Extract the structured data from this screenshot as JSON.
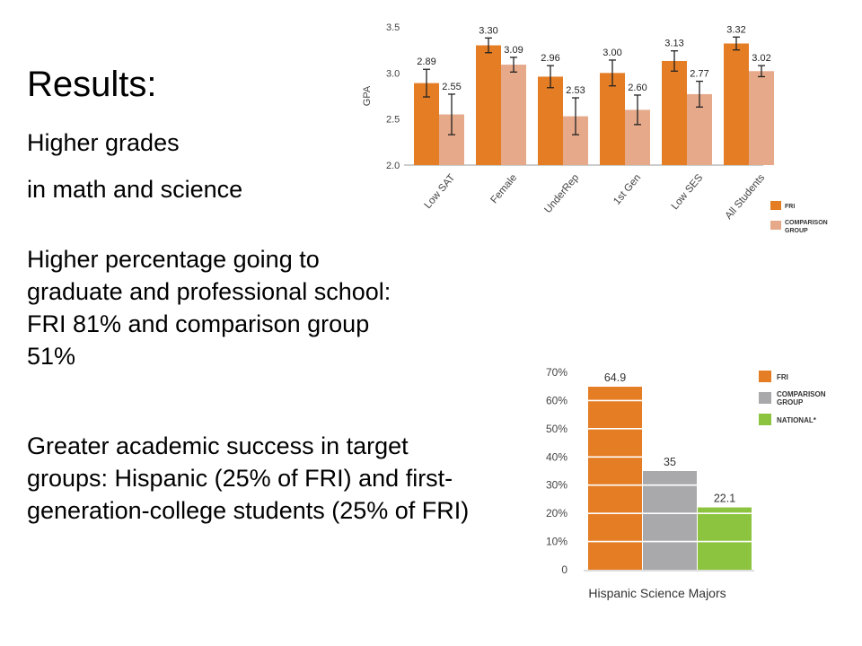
{
  "slide": {
    "title": "Results:",
    "bullets": [
      "Higher grades",
      "in math and science",
      "Higher percentage going to graduate and professional school: FRI 81% and comparison group 51%",
      "Greater academic success in target groups: Hispanic (25% of FRI) and first-generation-college students (25% of FRI)"
    ]
  },
  "chart_data": [
    {
      "type": "bar",
      "ylabel": "GPA",
      "ylim": [
        2.0,
        3.5
      ],
      "yticks": [
        "2.0",
        "2.5",
        "3.0",
        "3.5"
      ],
      "categories": [
        "Low SAT",
        "Female",
        "UnderRep",
        "1st Gen",
        "Low SES",
        "All Students"
      ],
      "series": [
        {
          "name": "FRI",
          "color": "#e57d25",
          "values": [
            2.89,
            3.3,
            2.96,
            3.0,
            3.13,
            3.32
          ],
          "labels": [
            "2.89",
            "3.30",
            "2.96",
            "3.00",
            "3.13",
            "3.32"
          ],
          "error": [
            0.15,
            0.08,
            0.12,
            0.14,
            0.11,
            0.07
          ]
        },
        {
          "name": "COMPARISON GROUP",
          "color": "#e6a98a",
          "values": [
            2.55,
            3.09,
            2.53,
            2.6,
            2.77,
            3.02
          ],
          "labels": [
            "2.55",
            "3.09",
            "2.53",
            "2.60",
            "2.77",
            "3.02"
          ],
          "error": [
            0.22,
            0.08,
            0.2,
            0.16,
            0.14,
            0.06
          ]
        }
      ],
      "legend": "right"
    },
    {
      "type": "bar",
      "xlabel": "Hispanic Science Majors",
      "ylim": [
        0,
        70
      ],
      "yticks": [
        "0",
        "10%",
        "20%",
        "30%",
        "40%",
        "50%",
        "60%",
        "70%"
      ],
      "grid": true,
      "series": [
        {
          "name": "FRI",
          "color": "#e57d25",
          "value": 64.9,
          "label": "64.9"
        },
        {
          "name": "COMPARISON GROUP",
          "color": "#a9a9ab",
          "value": 35,
          "label": "35"
        },
        {
          "name": "NATIONAL*",
          "color": "#8cc43f",
          "value": 22.1,
          "label": "22.1"
        }
      ],
      "legend": "right"
    }
  ]
}
